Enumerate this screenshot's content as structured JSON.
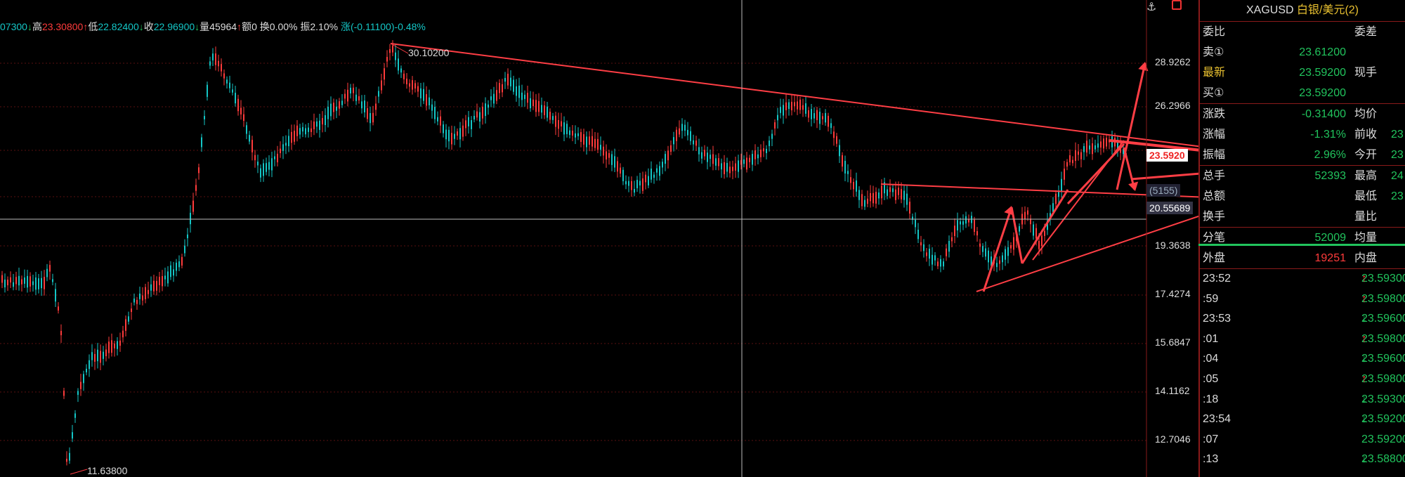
{
  "info_bar": {
    "open_value": "07300",
    "open_dir": "↓",
    "high_label": "高",
    "high_value": "23.30800",
    "high_dir": "↑",
    "low_label": "低",
    "low_value": "22.82400",
    "low_dir": "↓",
    "close_label": "收",
    "close_value": "22.96900",
    "close_dir": "↓",
    "vol_label": "量",
    "vol_value": "45964",
    "vol_dir": "↑",
    "amount_label": "额",
    "amount_value": "0",
    "turnover_label": "换",
    "turnover_value": "0.00%",
    "amplitude_label": "振",
    "amplitude_value": "2.10%",
    "change_label": "涨",
    "change_value": "(-0.11100)-0.48%"
  },
  "chart": {
    "price_ticks": [
      "28.9262",
      "26.2966",
      "19.3638",
      "17.4274",
      "15.6847",
      "14.1162",
      "12.7046"
    ],
    "last_price_tag": "23.5920",
    "volume_tag": "(5155)",
    "cursor_price_tag": "20.55689",
    "annotation_high": "30.10200",
    "annotation_low": "11.63800",
    "colors": {
      "up": "#ff3b3b",
      "down": "#14c6c6",
      "trend": "#ff3e45",
      "grid": "#5a1010"
    }
  },
  "panel": {
    "title_symbol": "XAGUSD",
    "title_name": "白银/美元(2)",
    "rows": [
      {
        "label": "委比",
        "value": "",
        "label2": "委差",
        "value2": ""
      },
      {
        "label": "卖①",
        "value": "23.61200",
        "label2": "",
        "value2": ""
      },
      {
        "label": "最新",
        "value": "23.59200",
        "label2": "现手",
        "value2": ""
      },
      {
        "label": "买①",
        "value": "23.59200",
        "label2": "",
        "value2": ""
      },
      {
        "label": "涨跌",
        "value": "-0.31400",
        "label2": "均价",
        "value2": ""
      },
      {
        "label": "涨幅",
        "value": "-1.31%",
        "label2": "前收",
        "value2": "23"
      },
      {
        "label": "振幅",
        "value": "2.96%",
        "label2": "今开",
        "value2": "23"
      },
      {
        "label": "总手",
        "value": "52393",
        "label2": "最高",
        "value2": "24"
      },
      {
        "label": "总额",
        "value": "",
        "label2": "最低",
        "value2": "23"
      },
      {
        "label": "换手",
        "value": "",
        "label2": "量比",
        "value2": ""
      },
      {
        "label": "分笔",
        "value": "52009",
        "label2": "均量",
        "value2": ""
      },
      {
        "label": "外盘",
        "value": "19251",
        "label2": "内盘",
        "value2": ""
      }
    ],
    "ticks": [
      {
        "time": "23:52",
        "price": "23.59300",
        "dir": "↑"
      },
      {
        "time": ":59",
        "price": "23.59800",
        "dir": "↑"
      },
      {
        "time": "23:53",
        "price": "23.59600",
        "dir": "↓"
      },
      {
        "time": ":01",
        "price": "23.59800",
        "dir": "↑"
      },
      {
        "time": ":04",
        "price": "23.59600",
        "dir": "↓"
      },
      {
        "time": ":05",
        "price": "23.59800",
        "dir": "↑"
      },
      {
        "time": ":18",
        "price": "23.59300",
        "dir": "↓"
      },
      {
        "time": "23:54",
        "price": "23.59200",
        "dir": "↓"
      },
      {
        "time": ":07",
        "price": "23.59200",
        "dir": ""
      },
      {
        "time": ":13",
        "price": "23.58800",
        "dir": "↓"
      }
    ]
  }
}
